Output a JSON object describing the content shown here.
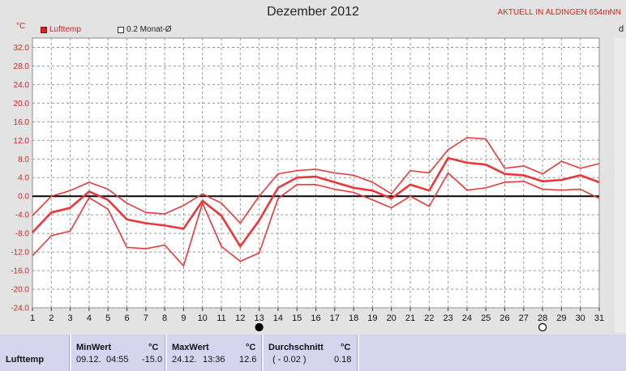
{
  "header": {
    "title": "Dezember 2012",
    "station": "AKTUELL IN ALDINGEN 654mNN",
    "unit": "°C",
    "edge_letter": "d"
  },
  "legend": [
    {
      "label": "Lufttemp",
      "color": "#e0201f"
    },
    {
      "label": "0.2 Monat-Ø",
      "color": "#ffffff"
    }
  ],
  "chart_data": {
    "type": "line",
    "title": "Dezember 2012",
    "ylabel": "°C",
    "ylim": [
      -24,
      34
    ],
    "x": [
      1,
      2,
      3,
      4,
      5,
      6,
      7,
      8,
      9,
      10,
      11,
      12,
      13,
      14,
      15,
      16,
      17,
      18,
      19,
      20,
      21,
      22,
      23,
      24,
      25,
      26,
      27,
      28,
      29,
      30,
      31
    ],
    "yticks": [
      32.0,
      28.0,
      24.0,
      20.0,
      16.0,
      12.0,
      8.0,
      4.0,
      0.0,
      -4.0,
      -8.0,
      -12.0,
      -16.0,
      -20.0,
      -24.0
    ],
    "series": [
      {
        "name": "Lufttemp max",
        "values": [
          -4.2,
          0.0,
          1.2,
          3.0,
          1.5,
          -1.5,
          -3.5,
          -3.8,
          -2.0,
          0.5,
          -1.5,
          -5.8,
          0.0,
          4.8,
          5.5,
          5.8,
          5.0,
          4.5,
          3.0,
          0.5,
          5.5,
          5.0,
          10.0,
          12.6,
          12.3,
          6.0,
          6.5,
          4.8,
          7.5,
          6.0,
          7.0
        ]
      },
      {
        "name": "Lufttemp mean",
        "values": [
          -7.8,
          -3.5,
          -2.5,
          1.0,
          -0.8,
          -5.0,
          -5.8,
          -6.3,
          -7.0,
          -1.0,
          -4.2,
          -10.8,
          -5.2,
          1.8,
          4.0,
          4.2,
          3.0,
          1.8,
          1.2,
          -0.5,
          2.5,
          1.2,
          8.2,
          7.2,
          6.8,
          4.8,
          4.5,
          3.2,
          3.5,
          4.5,
          3.0
        ]
      },
      {
        "name": "Lufttemp min",
        "values": [
          -12.8,
          -8.5,
          -7.5,
          -0.3,
          -2.8,
          -11.0,
          -11.3,
          -10.5,
          -15.0,
          -1.5,
          -10.8,
          -14.0,
          -12.2,
          -0.5,
          2.5,
          2.5,
          1.5,
          0.8,
          -0.8,
          -2.5,
          0.0,
          -2.2,
          5.0,
          1.3,
          1.8,
          3.0,
          3.2,
          1.5,
          1.3,
          1.5,
          -0.5
        ]
      }
    ],
    "moon_phases": [
      {
        "day": 13,
        "phase": "new-moon"
      },
      {
        "day": 28,
        "phase": "full-moon"
      }
    ],
    "grid": true
  },
  "stats": {
    "row_label": "Lufttemp",
    "min": {
      "header": "MinWert",
      "unit": "°C",
      "date": "09.12.",
      "time": "04:55",
      "value": "-15.0"
    },
    "max": {
      "header": "MaxWert",
      "unit": "°C",
      "date": "24.12.",
      "time": "13:36",
      "value": "12.6"
    },
    "avg": {
      "header": "Durchschnitt",
      "unit": "°C",
      "paren": "( - 0.02 )",
      "value": "0.18"
    }
  }
}
